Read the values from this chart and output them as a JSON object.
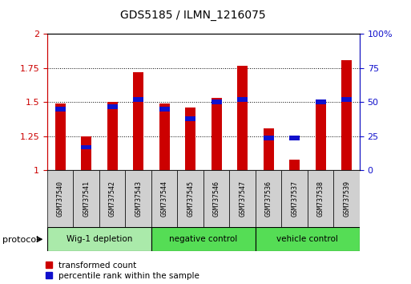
{
  "title": "GDS5185 / ILMN_1216075",
  "samples": [
    "GSM737540",
    "GSM737541",
    "GSM737542",
    "GSM737543",
    "GSM737544",
    "GSM737545",
    "GSM737546",
    "GSM737547",
    "GSM737536",
    "GSM737537",
    "GSM737538",
    "GSM737539"
  ],
  "transformed_count": [
    1.49,
    1.25,
    1.5,
    1.72,
    1.49,
    1.46,
    1.53,
    1.77,
    1.31,
    1.08,
    1.51,
    1.81
  ],
  "percentile_rank": [
    45,
    17,
    47,
    52,
    45,
    38,
    50,
    52,
    24,
    24,
    50,
    52
  ],
  "bar_color_red": "#cc0000",
  "bar_color_blue": "#1010cc",
  "ylim_left": [
    1.0,
    2.0
  ],
  "ylim_right": [
    0,
    100
  ],
  "yticks_left": [
    1.0,
    1.25,
    1.5,
    1.75,
    2.0
  ],
  "yticks_right": [
    0,
    25,
    50,
    75,
    100
  ],
  "ytick_labels_left": [
    "1",
    "1.25",
    "1.5",
    "1.75",
    "2"
  ],
  "ytick_labels_right": [
    "0",
    "25",
    "50",
    "75",
    "100%"
  ],
  "protocol_label": "protocol",
  "legend_red": "transformed count",
  "legend_blue": "percentile rank within the sample",
  "group_info": [
    {
      "label": "Wig-1 depletion",
      "start": 0,
      "end": 3,
      "color": "#aaeaaa"
    },
    {
      "label": "negative control",
      "start": 4,
      "end": 7,
      "color": "#55dd55"
    },
    {
      "label": "vehicle control",
      "start": 8,
      "end": 11,
      "color": "#55dd55"
    }
  ],
  "bar_width": 0.4,
  "sample_box_color": "#d0d0d0",
  "plot_bg": "#ffffff"
}
